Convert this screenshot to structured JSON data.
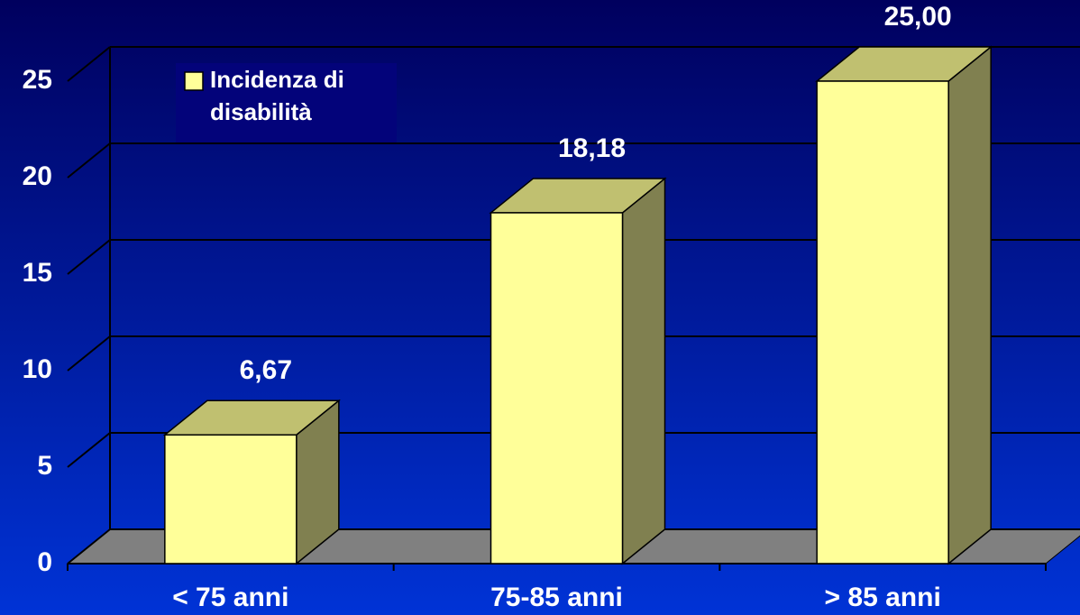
{
  "chart_data": {
    "type": "bar3d",
    "categories": [
      "< 75 anni",
      "75-85 anni",
      "> 85 anni"
    ],
    "series": [
      {
        "name": "Incidenza di disabilità",
        "color": "#ffff99",
        "values": [
          6.67,
          18.18,
          25.0
        ],
        "value_labels": [
          "6,67",
          "18,18",
          "25,00"
        ]
      }
    ],
    "ylim": [
      0,
      25
    ],
    "yticks": [
      0,
      5,
      10,
      15,
      20,
      25
    ],
    "grid": true,
    "legend": "top-left"
  }
}
